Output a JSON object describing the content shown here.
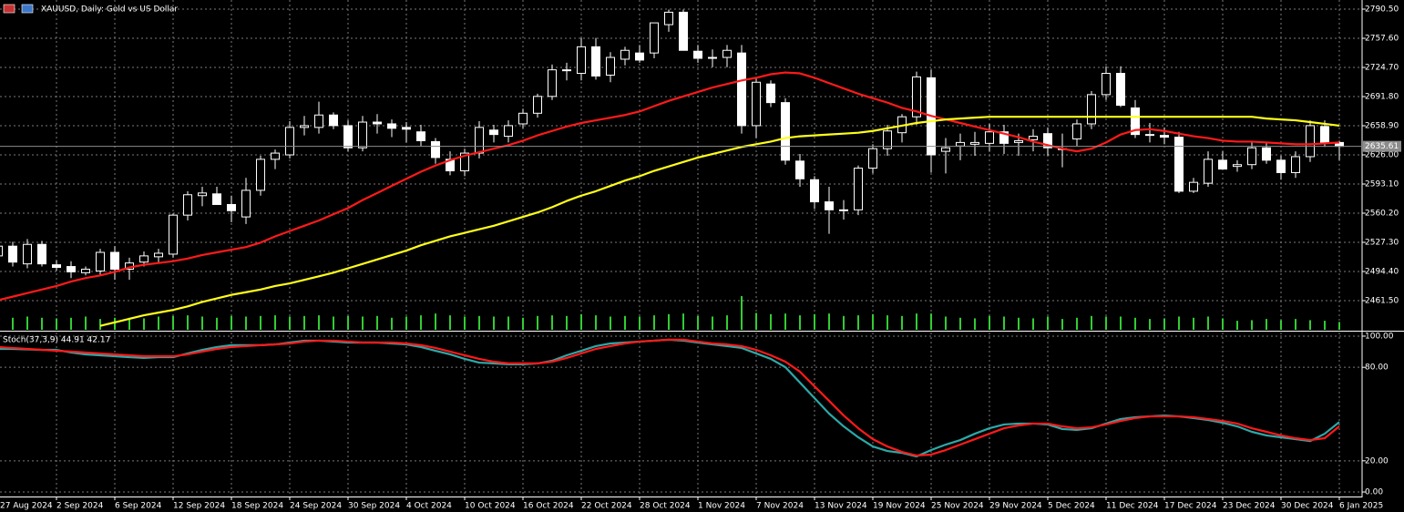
{
  "chart_data": {
    "type": "candlestick",
    "title": "XAUUSD, Daily: Gold vs US Dollar",
    "background": "#000000",
    "candle_color": "#ffffff",
    "grid": true,
    "grid_color": "#7a7a7a",
    "categories": [
      "27 Aug 2024",
      null,
      null,
      null,
      "2 Sep 2024",
      null,
      null,
      null,
      "6 Sep 2024",
      null,
      null,
      null,
      "12 Sep 2024",
      null,
      null,
      null,
      "18 Sep 2024",
      null,
      null,
      null,
      "24 Sep 2024",
      null,
      null,
      null,
      "30 Sep 2024",
      null,
      null,
      null,
      "4 Oct 2024",
      null,
      null,
      null,
      "10 Oct 2024",
      null,
      null,
      null,
      "16 Oct 2024",
      null,
      null,
      null,
      "22 Oct 2024",
      null,
      null,
      null,
      "28 Oct 2024",
      null,
      null,
      null,
      "1 Nov 2024",
      null,
      null,
      null,
      "7 Nov 2024",
      null,
      null,
      null,
      "13 Nov 2024",
      null,
      null,
      null,
      "19 Nov 2024",
      null,
      null,
      null,
      "25 Nov 2024",
      null,
      null,
      null,
      "29 Nov 2024",
      null,
      null,
      null,
      "5 Dec 2024",
      null,
      null,
      null,
      "11 Dec 2024",
      null,
      null,
      null,
      "17 Dec 2024",
      null,
      null,
      null,
      "23 Dec 2024",
      null,
      null,
      null,
      "30 Dec 2024",
      null,
      null,
      null,
      "6 Jan 2025"
    ],
    "open": [
      2512,
      2523,
      2503,
      2525,
      2502,
      2500,
      2493,
      2495,
      2516,
      2497,
      2505,
      2511,
      2514,
      2558,
      2580,
      2582,
      2570,
      2556,
      2586,
      2621,
      2626,
      2657,
      2657,
      2671,
      2659,
      2634,
      2663,
      2661,
      2657,
      2652,
      2641,
      2621,
      2608,
      2628,
      2654,
      2647,
      2661,
      2673,
      2692,
      2721,
      2718,
      2748,
      2716,
      2734,
      2741,
      2741,
      2773,
      2787,
      2743,
      2736,
      2736,
      2741,
      2659,
      2706,
      2685,
      2619,
      2598,
      2573,
      2563,
      2564,
      2611,
      2633,
      2651,
      2669,
      2713,
      2630,
      2636,
      2638,
      2639,
      2652,
      2640,
      2643,
      2650,
      2633,
      2644,
      2661,
      2694,
      2718,
      2679,
      2648,
      2648,
      2646,
      2585,
      2594,
      2620,
      2613,
      2615,
      2634,
      2620,
      2606,
      2624,
      2658,
      2640
    ],
    "high": [
      2527,
      2528,
      2531,
      2529,
      2507,
      2506,
      2500,
      2520,
      2523,
      2510,
      2517,
      2520,
      2560,
      2585,
      2590,
      2590,
      2580,
      2600,
      2625,
      2632,
      2664,
      2670,
      2686,
      2674,
      2665,
      2670,
      2672,
      2666,
      2663,
      2660,
      2645,
      2630,
      2633,
      2664,
      2660,
      2665,
      2678,
      2695,
      2728,
      2730,
      2758,
      2758,
      2742,
      2748,
      2750,
      2775,
      2790,
      2790,
      2750,
      2745,
      2750,
      2750,
      2712,
      2710,
      2690,
      2627,
      2602,
      2590,
      2575,
      2614,
      2638,
      2660,
      2672,
      2720,
      2722,
      2645,
      2650,
      2652,
      2661,
      2660,
      2650,
      2655,
      2657,
      2650,
      2666,
      2698,
      2726,
      2726,
      2688,
      2662,
      2657,
      2652,
      2600,
      2630,
      2630,
      2620,
      2640,
      2640,
      2625,
      2630,
      2665,
      2665,
      2642
    ],
    "low": [
      2506,
      2500,
      2498,
      2500,
      2495,
      2487,
      2490,
      2490,
      2485,
      2485,
      2500,
      2505,
      2510,
      2552,
      2568,
      2570,
      2550,
      2548,
      2580,
      2610,
      2622,
      2648,
      2650,
      2655,
      2630,
      2630,
      2650,
      2646,
      2640,
      2636,
      2616,
      2603,
      2602,
      2622,
      2640,
      2640,
      2656,
      2668,
      2688,
      2710,
      2710,
      2711,
      2708,
      2727,
      2730,
      2735,
      2765,
      2744,
      2730,
      2725,
      2725,
      2650,
      2645,
      2680,
      2615,
      2590,
      2565,
      2537,
      2553,
      2558,
      2605,
      2625,
      2640,
      2660,
      2606,
      2605,
      2620,
      2625,
      2630,
      2627,
      2625,
      2630,
      2625,
      2612,
      2636,
      2655,
      2688,
      2680,
      2645,
      2640,
      2638,
      2583,
      2583,
      2590,
      2610,
      2607,
      2610,
      2616,
      2598,
      2600,
      2618,
      2635,
      2620
    ],
    "close": [
      2523,
      2505,
      2525,
      2503,
      2499,
      2494,
      2497,
      2516,
      2497,
      2504,
      2512,
      2515,
      2558,
      2581,
      2583,
      2570,
      2563,
      2586,
      2621,
      2628,
      2657,
      2659,
      2671,
      2659,
      2634,
      2663,
      2661,
      2656,
      2655,
      2642,
      2623,
      2608,
      2628,
      2657,
      2649,
      2659,
      2673,
      2692,
      2722,
      2722,
      2748,
      2715,
      2736,
      2744,
      2733,
      2775,
      2787,
      2744,
      2735,
      2736,
      2744,
      2659,
      2708,
      2685,
      2620,
      2599,
      2573,
      2564,
      2564,
      2611,
      2633,
      2653,
      2669,
      2714,
      2626,
      2634,
      2640,
      2640,
      2652,
      2639,
      2642,
      2647,
      2634,
      2633,
      2661,
      2694,
      2718,
      2682,
      2649,
      2649,
      2646,
      2585,
      2595,
      2621,
      2610,
      2615,
      2634,
      2620,
      2606,
      2624,
      2659,
      2640,
      2635.61
    ],
    "current_price": 2635.61,
    "current_price_color": "#8c8c8c",
    "ylim": [
      2428.6,
      2800.8
    ],
    "yticks": [
      {
        "value": 2790.5,
        "label": "2790.50"
      },
      {
        "value": 2757.6,
        "label": "2757.60"
      },
      {
        "value": 2724.7,
        "label": "2724.70"
      },
      {
        "value": 2691.8,
        "label": "2691.80"
      },
      {
        "value": 2658.9,
        "label": "2658.90"
      },
      {
        "value": 2626,
        "label": "2626.00"
      },
      {
        "value": 2593.1,
        "label": "2593.10"
      },
      {
        "value": 2560.2,
        "label": "2560.20"
      },
      {
        "value": 2527.3,
        "label": "2527.30"
      },
      {
        "value": 2494.4,
        "label": "2494.40"
      },
      {
        "value": 2461.5,
        "label": "2461.50"
      }
    ],
    "series": [
      {
        "color": "#ff1a1a",
        "values": [
          2462,
          2466,
          2470,
          2474,
          2478,
          2483,
          2487,
          2490,
          2494,
          2499,
          2502,
          2504,
          2506,
          2509,
          2513,
          2516,
          2519,
          2522,
          2527,
          2534,
          2540,
          2546,
          2552,
          2559,
          2566,
          2575,
          2583,
          2591,
          2599,
          2607,
          2614,
          2620,
          2625,
          2629,
          2633,
          2637,
          2642,
          2648,
          2653,
          2658,
          2662,
          2665,
          2668,
          2671,
          2675,
          2681,
          2687,
          2692,
          2697,
          2702,
          2706,
          2710,
          2713,
          2717,
          2719,
          2718,
          2713,
          2707,
          2701,
          2695,
          2690,
          2685,
          2679,
          2675,
          2670,
          2666,
          2662,
          2658,
          2654,
          2650,
          2646,
          2641,
          2637,
          2633,
          2630,
          2633,
          2640,
          2649,
          2654,
          2655,
          2653,
          2650,
          2647,
          2645,
          2642,
          2641,
          2641,
          2640,
          2639,
          2638,
          2638,
          2639,
          2640
        ]
      },
      {
        "color": "#ffff1a",
        "values": [
          null,
          null,
          null,
          null,
          null,
          null,
          null,
          2433,
          2437,
          2441,
          2445,
          2448,
          2451,
          2455,
          2460,
          2464,
          2468,
          2471,
          2474,
          2478,
          2481,
          2485,
          2489,
          2493,
          2498,
          2503,
          2508,
          2513,
          2518,
          2524,
          2529,
          2534,
          2538,
          2542,
          2546,
          2551,
          2556,
          2561,
          2567,
          2574,
          2580,
          2585,
          2591,
          2597,
          2602,
          2608,
          2613,
          2618,
          2623,
          2627,
          2631,
          2635,
          2638,
          2641,
          2645,
          2647,
          2648,
          2649,
          2650,
          2651,
          2653,
          2656,
          2659,
          2662,
          2664,
          2666,
          2667,
          2668,
          2669,
          2669,
          2669,
          2669,
          2669,
          2669,
          2669,
          2669,
          2669,
          2669,
          2669,
          2669,
          2669,
          2669,
          2669,
          2669,
          2669,
          2669,
          2669,
          2667,
          2666,
          2665,
          2663,
          2661,
          2659
        ]
      }
    ],
    "volume": {
      "color": "#32cd32",
      "values": [
        110000,
        100000,
        110000,
        100000,
        95000,
        100000,
        110000,
        90000,
        100000,
        100000,
        95000,
        110000,
        115000,
        120000,
        110000,
        100000,
        115000,
        110000,
        115000,
        120000,
        110000,
        115000,
        120000,
        110000,
        115000,
        110000,
        115000,
        100000,
        110000,
        120000,
        135000,
        120000,
        110000,
        115000,
        110000,
        110000,
        100000,
        115000,
        120000,
        115000,
        130000,
        120000,
        110000,
        115000,
        110000,
        120000,
        130000,
        135000,
        115000,
        110000,
        120000,
        280000,
        140000,
        130000,
        135000,
        120000,
        130000,
        135000,
        115000,
        120000,
        130000,
        120000,
        115000,
        135000,
        135000,
        110000,
        100000,
        95000,
        115000,
        110000,
        100000,
        95000,
        110000,
        90000,
        100000,
        115000,
        110000,
        110000,
        100000,
        90000,
        95000,
        110000,
        100000,
        110000,
        95000,
        75000,
        80000,
        90000,
        80000,
        90000,
        80000,
        75000,
        65000
      ]
    },
    "stoch": {
      "label": "Stoch(37,3,9) 44.91 42.17",
      "ylim": [
        -2.9,
        102.9
      ],
      "yticks": [
        {
          "value": 100,
          "label": "100.00"
        },
        {
          "value": 80,
          "label": "80.00"
        },
        {
          "value": 20,
          "label": "20.00"
        },
        {
          "value": 0,
          "label": "0.00"
        }
      ],
      "series": [
        {
          "color": "#2ea8a8",
          "values": [
            91.8,
            91.8,
            91.5,
            91.2,
            91.2,
            89.5,
            88.3,
            87.7,
            87.1,
            86.5,
            86.0,
            86.5,
            86.5,
            88.9,
            91.2,
            93.0,
            94.2,
            94.2,
            94.2,
            94.7,
            95.9,
            97.1,
            97.1,
            96.5,
            95.9,
            95.9,
            95.9,
            95.3,
            94.7,
            93.0,
            90.6,
            88.3,
            85.4,
            83.0,
            82.5,
            81.9,
            81.9,
            82.5,
            84.2,
            87.7,
            90.6,
            93.6,
            95.3,
            95.9,
            96.5,
            97.1,
            97.7,
            97.1,
            95.9,
            94.7,
            93.6,
            92.4,
            88.9,
            85.4,
            80.1,
            70.2,
            60.2,
            50.3,
            42.1,
            35.1,
            29.2,
            26.3,
            25.1,
            22.8,
            26.9,
            30.4,
            33.3,
            37.4,
            40.9,
            43.3,
            43.9,
            43.9,
            43.3,
            40.4,
            39.8,
            40.9,
            43.9,
            46.8,
            48.0,
            48.5,
            49.1,
            48.5,
            47.4,
            46.2,
            44.4,
            42.1,
            38.6,
            36.3,
            35.1,
            33.9,
            32.7,
            37.4,
            44.91
          ]
        },
        {
          "color": "#ff1a1a",
          "values": [
            93.0,
            92.4,
            91.8,
            91.2,
            90.6,
            90.1,
            89.5,
            88.9,
            88.3,
            87.7,
            87.1,
            87.1,
            87.1,
            88.3,
            90.1,
            91.8,
            93.0,
            93.6,
            94.2,
            94.7,
            95.3,
            96.5,
            97.1,
            97.1,
            96.5,
            95.9,
            95.9,
            95.9,
            95.3,
            94.2,
            92.4,
            90.1,
            87.7,
            85.4,
            83.6,
            82.5,
            82.5,
            82.5,
            83.6,
            86.0,
            88.9,
            91.8,
            93.6,
            95.3,
            96.5,
            97.1,
            97.7,
            97.7,
            96.5,
            95.3,
            94.7,
            93.6,
            91.2,
            87.7,
            83.6,
            77.2,
            67.8,
            58.5,
            49.1,
            40.9,
            33.9,
            29.2,
            25.7,
            23.4,
            24.0,
            26.9,
            30.4,
            33.9,
            37.4,
            40.9,
            42.7,
            43.9,
            43.9,
            42.1,
            40.9,
            41.5,
            43.3,
            45.6,
            47.4,
            48.5,
            48.5,
            48.5,
            48.0,
            46.8,
            45.6,
            43.9,
            40.9,
            38.6,
            36.3,
            34.5,
            33.3,
            34.5,
            42.17
          ]
        }
      ]
    }
  }
}
